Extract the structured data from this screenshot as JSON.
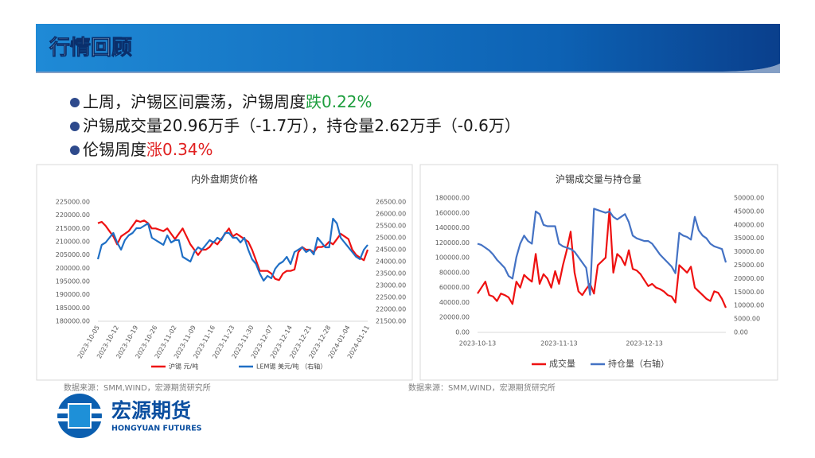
{
  "header": {
    "title": "行情回顾"
  },
  "bullets": [
    [
      {
        "text": "上周，沪锡区间震荡，沪锡周度",
        "color": "#1a1a1a"
      },
      {
        "text": "跌0.22%",
        "color": "#1e9e3e"
      }
    ],
    [
      {
        "text": "沪锡成交量20.96万手（-1.7万），持仓量2.62万手（-0.6万）",
        "color": "#1a1a1a"
      }
    ],
    [
      {
        "text": "伦锡周度",
        "color": "#1a1a1a"
      },
      {
        "text": "涨0.34%",
        "color": "#e02020"
      }
    ]
  ],
  "chart_data": [
    {
      "type": "line",
      "title": "内外盘期货价格",
      "categories": [
        "2023-10-05",
        null,
        null,
        null,
        null,
        "2023-10-12",
        null,
        null,
        null,
        null,
        "2023-10-19",
        null,
        null,
        null,
        null,
        "2023-10-26",
        null,
        null,
        null,
        null,
        "2023-11-02",
        null,
        null,
        null,
        null,
        "2023-11-09",
        null,
        null,
        null,
        null,
        "2023-11-16",
        null,
        null,
        null,
        null,
        "2023-11-23",
        null,
        null,
        null,
        null,
        "2023-11-30",
        null,
        null,
        null,
        null,
        "2023-12-07",
        null,
        null,
        null,
        null,
        "2023-12-14",
        null,
        null,
        null,
        null,
        "2023-12-21",
        null,
        null,
        null,
        null,
        "2023-12-28",
        null,
        null,
        null,
        null,
        "2024-01-04",
        null,
        null,
        null,
        null,
        "2024-01-11"
      ],
      "series": [
        {
          "name": "沪锡 元/吨",
          "color": "#ee1111",
          "values": [
            217000,
            217500,
            216000,
            214000,
            212000,
            209000,
            212000,
            213000,
            214000,
            216000,
            218000,
            217500,
            218000,
            217000,
            215000,
            215000,
            214500,
            214000,
            215000,
            213000,
            211000,
            213000,
            215000,
            212000,
            209000,
            207000,
            205000,
            207000,
            207000,
            208000,
            210000,
            209000,
            211000,
            213000,
            215000,
            212000,
            213000,
            212000,
            211000,
            210000,
            207000,
            203000,
            199000,
            199000,
            199000,
            198000,
            196000,
            195500,
            198000,
            199000,
            199000,
            199500,
            206000,
            208000,
            207000,
            207000,
            206000,
            208000,
            208000,
            208500,
            210000,
            209000,
            211000,
            213000,
            212000,
            211000,
            207000,
            205000,
            204000,
            203000,
            207000
          ]
        },
        {
          "name": "LEM锡 美元/吨 （右轴）",
          "color": "#1f6fc5",
          "axis": "y2",
          "values": [
            24100,
            24700,
            24800,
            25000,
            25200,
            24800,
            24500,
            24900,
            25100,
            25200,
            25400,
            25400,
            25500,
            25600,
            25000,
            24900,
            24800,
            24700,
            25100,
            24800,
            24900,
            24900,
            24200,
            24100,
            24000,
            24400,
            24600,
            24500,
            24700,
            24900,
            24800,
            25000,
            24900,
            25200,
            25200,
            25000,
            25000,
            24800,
            25000,
            24500,
            24100,
            23900,
            23500,
            23200,
            23400,
            23300,
            23700,
            23900,
            24000,
            24200,
            23900,
            24400,
            24500,
            24600,
            24400,
            24500,
            24300,
            25000,
            24800,
            24600,
            24600,
            25800,
            25600,
            25000,
            24800,
            24600,
            24400,
            24200,
            24100,
            24500,
            24700
          ]
        }
      ],
      "ylim": [
        180000,
        225000
      ],
      "yticks": [
        {
          "value": 180000,
          "label": "180000.00"
        },
        {
          "value": 185000,
          "label": "185000.00"
        },
        {
          "value": 190000,
          "label": "190000.00"
        },
        {
          "value": 195000,
          "label": "195000.00"
        },
        {
          "value": 200000,
          "label": "200000.00"
        },
        {
          "value": 205000,
          "label": "205000.00"
        },
        {
          "value": 210000,
          "label": "210000.00"
        },
        {
          "value": 215000,
          "label": "215000.00"
        },
        {
          "value": 220000,
          "label": "220000.00"
        },
        {
          "value": 225000,
          "label": "225000.00"
        }
      ],
      "y2lim": [
        21500,
        26500
      ],
      "y2ticks": [
        {
          "value": 21500,
          "label": "21500.00"
        },
        {
          "value": 22000,
          "label": "22000.00"
        },
        {
          "value": 22500,
          "label": "22500.00"
        },
        {
          "value": 23000,
          "label": "23000.00"
        },
        {
          "value": 23500,
          "label": "23500.00"
        },
        {
          "value": 24000,
          "label": "24000.00"
        },
        {
          "value": 24500,
          "label": "24500.00"
        },
        {
          "value": 25000,
          "label": "25000.00"
        },
        {
          "value": 25500,
          "label": "25500.00"
        },
        {
          "value": 26000,
          "label": "26000.00"
        },
        {
          "value": 26500,
          "label": "26500.00"
        }
      ],
      "source": "数据来源：SMM,WIND，宏源期货研究所"
    },
    {
      "type": "line",
      "title": "沪锡成交量与持仓量",
      "categories": [
        "2023-10-13",
        null,
        null,
        null,
        null,
        null,
        null,
        null,
        null,
        null,
        null,
        null,
        null,
        null,
        null,
        null,
        null,
        null,
        null,
        null,
        null,
        "2023-11-13",
        null,
        null,
        null,
        null,
        null,
        null,
        null,
        null,
        null,
        null,
        null,
        null,
        null,
        null,
        null,
        null,
        null,
        null,
        null,
        null,
        null,
        "2023-12-13",
        null,
        null,
        null,
        null,
        null,
        null,
        null,
        null,
        null,
        null,
        null,
        null,
        null,
        null,
        null,
        null,
        null,
        null,
        null,
        null,
        null
      ],
      "series": [
        {
          "name": "成交量",
          "color": "#ee1111",
          "values": [
            52000,
            60000,
            68000,
            50000,
            48000,
            42000,
            52000,
            50000,
            47000,
            38000,
            68000,
            60000,
            77000,
            72000,
            68000,
            105000,
            65000,
            78000,
            72000,
            60000,
            82000,
            65000,
            90000,
            110000,
            135000,
            80000,
            55000,
            50000,
            58000,
            65000,
            52000,
            90000,
            95000,
            100000,
            165000,
            80000,
            105000,
            100000,
            90000,
            110000,
            85000,
            83000,
            78000,
            70000,
            62000,
            65000,
            60000,
            58000,
            55000,
            50000,
            48000,
            40000,
            90000,
            85000,
            80000,
            88000,
            60000,
            55000,
            50000,
            45000,
            42000,
            55000,
            53000,
            45000,
            33000
          ]
        },
        {
          "name": "持仓量（右轴）",
          "color": "#4472c4",
          "axis": "y2",
          "values": [
            33000,
            32500,
            31500,
            30500,
            29000,
            27000,
            25500,
            24000,
            21000,
            20000,
            28000,
            33000,
            36000,
            34000,
            33000,
            45000,
            44000,
            40000,
            39500,
            39500,
            39500,
            33000,
            32000,
            31500,
            31000,
            30000,
            28000,
            26000,
            24000,
            14000,
            46000,
            45500,
            45000,
            44500,
            45000,
            43000,
            42000,
            43000,
            44000,
            41000,
            36000,
            35000,
            34500,
            34000,
            34000,
            33000,
            31000,
            29000,
            27500,
            26000,
            24500,
            22000,
            37000,
            36000,
            35500,
            34500,
            43000,
            38000,
            36000,
            35000,
            33000,
            32000,
            31500,
            31000,
            26000
          ]
        }
      ],
      "ylim": [
        0,
        180000
      ],
      "yticks": [
        {
          "value": 0,
          "label": "0.00"
        },
        {
          "value": 20000,
          "label": "20000.00"
        },
        {
          "value": 40000,
          "label": "40000.00"
        },
        {
          "value": 60000,
          "label": "60000.00"
        },
        {
          "value": 80000,
          "label": "80000.00"
        },
        {
          "value": 100000,
          "label": "100000.00"
        },
        {
          "value": 120000,
          "label": "120000.00"
        },
        {
          "value": 140000,
          "label": "140000.00"
        },
        {
          "value": 160000,
          "label": "160000.00"
        },
        {
          "value": 180000,
          "label": "180000.00"
        }
      ],
      "y2lim": [
        0,
        50000
      ],
      "y2ticks": [
        {
          "value": 0,
          "label": "0.00"
        },
        {
          "value": 5000,
          "label": "5000.00"
        },
        {
          "value": 10000,
          "label": "10000.00"
        },
        {
          "value": 15000,
          "label": "15000.00"
        },
        {
          "value": 20000,
          "label": "20000.00"
        },
        {
          "value": 25000,
          "label": "25000.00"
        },
        {
          "value": 30000,
          "label": "30000.00"
        },
        {
          "value": 35000,
          "label": "35000.00"
        },
        {
          "value": 40000,
          "label": "40000.00"
        },
        {
          "value": 45000,
          "label": "45000.00"
        },
        {
          "value": 50000,
          "label": "50000.00"
        }
      ],
      "source": "数据来源：SMM,WIND，宏源期货研究所"
    }
  ],
  "logo": {
    "name": "宏源期货",
    "subtitle": "HONGYUAN FUTURES"
  }
}
